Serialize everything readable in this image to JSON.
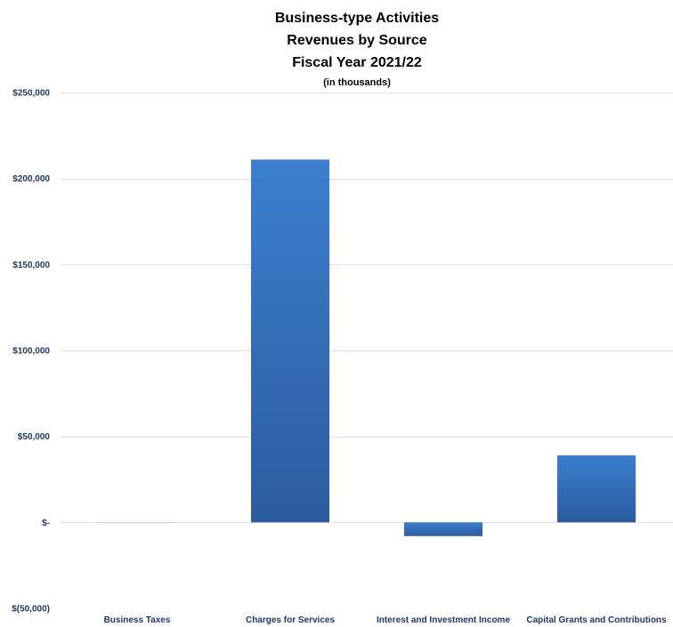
{
  "chart_data": {
    "type": "bar",
    "title": [
      "Business-type Activities",
      "Revenues by Source",
      "Fiscal Year 2021/22"
    ],
    "subtitle": "(in thousands)",
    "categories": [
      "Business Taxes",
      "Charges for Services",
      "Interest and Investment Income",
      "Capital Grants and Contributions"
    ],
    "values": [
      -300,
      211000,
      -8000,
      39000
    ],
    "ylim": [
      -50000,
      250000
    ],
    "yticks": [
      250000,
      200000,
      150000,
      100000,
      50000,
      0,
      -50000
    ],
    "ytick_labels": [
      "$250,000",
      "$200,000",
      "$150,000",
      "$100,000",
      "$50,000",
      "$-",
      "$(50,000)"
    ],
    "grid": true,
    "xlabel": "",
    "ylabel": "",
    "bar_color_top": "#3a7fcf",
    "bar_color_bottom": "#2c5c9e",
    "label_color": "#1f3864"
  }
}
